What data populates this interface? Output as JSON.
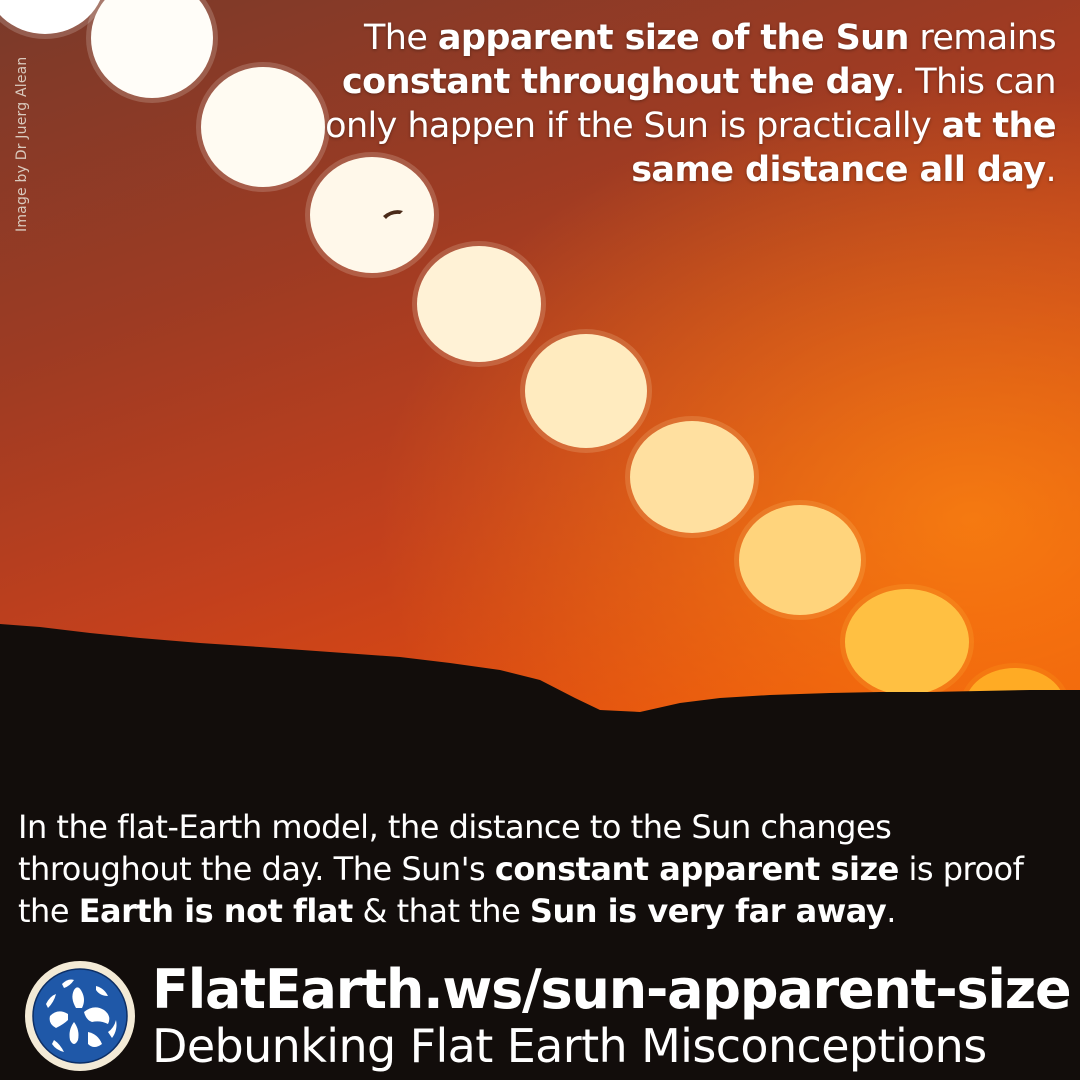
{
  "photo": {
    "credit": "Image by Dr Juerg Alean",
    "sky_colors": [
      "#7a3a2a",
      "#9d3b23",
      "#c2401d",
      "#e54d0d",
      "#f15f08"
    ],
    "ground_color": "#120d0b"
  },
  "headline": {
    "parts": [
      {
        "text": "The ",
        "bold": false
      },
      {
        "text": "apparent size of the Sun",
        "bold": true
      },
      {
        "text": " remains ",
        "bold": false
      },
      {
        "text": "constant throughout the day",
        "bold": true
      },
      {
        "text": ". This can only happen if the Sun is practically ",
        "bold": false
      },
      {
        "text": "at the same distance all day",
        "bold": true
      },
      {
        "text": ".",
        "bold": false
      }
    ]
  },
  "explanation": {
    "parts": [
      {
        "text": "In the flat-Earth model, the distance to the Sun changes throughout the day. The Sun's ",
        "bold": false
      },
      {
        "text": "constant apparent size",
        "bold": true
      },
      {
        "text": " is proof the ",
        "bold": false
      },
      {
        "text": "Earth is not flat",
        "bold": true
      },
      {
        "text": " & that the ",
        "bold": false
      },
      {
        "text": "Sun is very far away",
        "bold": true
      },
      {
        "text": ".",
        "bold": false
      }
    ]
  },
  "footer": {
    "url": "FlatEarth.ws/sun-apparent-size",
    "tagline": "Debunking Flat Earth Misconceptions"
  },
  "colors": {
    "text": "#ffffff",
    "logo_ring": "#f3ead6",
    "logo_ocean": "#1f58a8",
    "logo_land": "#ffffff"
  }
}
